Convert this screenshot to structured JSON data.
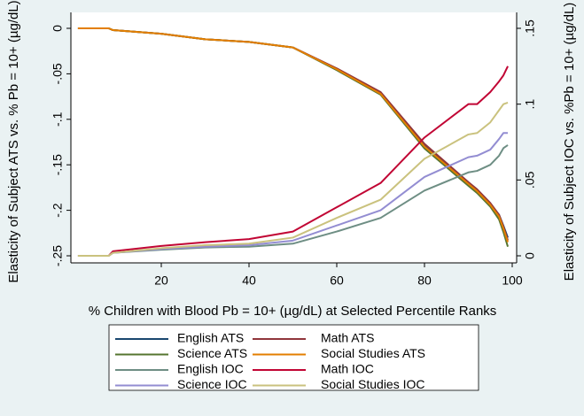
{
  "chart_data": {
    "type": "line",
    "x_label": "% Children with Blood Pb = 10+ (µg/dL) at Selected Percentile Ranks",
    "y_label": "Elasticity of Subject ATS vs. % Pb = 10+ (µg/dL)",
    "y2_label": "Elasticity of Subject IOC vs. %Pb = 10+ (µg/dL)",
    "x": [
      1,
      8,
      9,
      20,
      30,
      40,
      50,
      60,
      70,
      80,
      90,
      92,
      95,
      97,
      98,
      99
    ],
    "xlim": [
      0,
      100
    ],
    "xticks": [
      20,
      40,
      60,
      80,
      100
    ],
    "ylim": [
      -0.25,
      0
    ],
    "yticks": [
      0,
      {
        "value": -0.05,
        "label": "-.05"
      },
      {
        "value": -0.1,
        "label": "-.1"
      },
      {
        "value": -0.15,
        "label": "-.15"
      },
      {
        "value": -0.2,
        "label": "-.2"
      },
      {
        "value": -0.25,
        "label": "-.25"
      }
    ],
    "y2lim": [
      0,
      0.15
    ],
    "y2ticks": [
      0,
      {
        "value": 0.05,
        "label": ".05"
      },
      {
        "value": 0.1,
        "label": ".1"
      },
      {
        "value": 0.15,
        "label": ".15"
      }
    ],
    "series": [
      {
        "name": "English ATS",
        "color": "#1a476f",
        "values": [
          0,
          0,
          -0.002,
          -0.006,
          -0.012,
          -0.015,
          -0.021,
          -0.045,
          -0.071,
          -0.129,
          -0.17,
          -0.178,
          -0.193,
          -0.205,
          -0.217,
          -0.23
        ]
      },
      {
        "name": "Math ATS",
        "color": "#90353b",
        "values": [
          0,
          0,
          -0.002,
          -0.006,
          -0.012,
          -0.015,
          -0.021,
          -0.044,
          -0.07,
          -0.127,
          -0.169,
          -0.177,
          -0.192,
          -0.205,
          -0.218,
          -0.233
        ]
      },
      {
        "name": "Science ATS",
        "color": "#55752f",
        "values": [
          0,
          0,
          -0.002,
          -0.006,
          -0.012,
          -0.015,
          -0.021,
          -0.046,
          -0.073,
          -0.132,
          -0.173,
          -0.181,
          -0.196,
          -0.21,
          -0.224,
          -0.24
        ]
      },
      {
        "name": "Social Studies ATS",
        "color": "#e37e00",
        "values": [
          0,
          0,
          -0.002,
          -0.006,
          -0.012,
          -0.015,
          -0.021,
          -0.045,
          -0.072,
          -0.13,
          -0.171,
          -0.179,
          -0.194,
          -0.207,
          -0.22,
          -0.235
        ]
      },
      {
        "name": "English IOC",
        "color": "#6e8e84",
        "axis": "y2",
        "values": [
          0,
          0,
          0.002,
          0.004,
          0.0055,
          0.006,
          0.008,
          0.016,
          0.025,
          0.043,
          0.055,
          0.056,
          0.06,
          0.066,
          0.071,
          0.073
        ]
      },
      {
        "name": "Math IOC",
        "color": "#c10534",
        "axis": "y2",
        "values": [
          0,
          0,
          0.003,
          0.0065,
          0.009,
          0.011,
          0.016,
          0.032,
          0.048,
          0.078,
          0.1,
          0.1,
          0.108,
          0.115,
          0.119,
          0.125
        ]
      },
      {
        "name": "Science IOC",
        "color": "#938dd2",
        "axis": "y2",
        "values": [
          0,
          0,
          0.002,
          0.0045,
          0.006,
          0.007,
          0.01,
          0.02,
          0.03,
          0.052,
          0.065,
          0.066,
          0.07,
          0.077,
          0.081,
          0.081
        ]
      },
      {
        "name": "Social Studies IOC",
        "color": "#cac27e",
        "axis": "y2",
        "values": [
          0,
          0,
          0.002,
          0.005,
          0.007,
          0.008,
          0.012,
          0.025,
          0.037,
          0.064,
          0.08,
          0.081,
          0.088,
          0.096,
          0.1,
          0.101
        ]
      }
    ],
    "legend": "bottom"
  }
}
